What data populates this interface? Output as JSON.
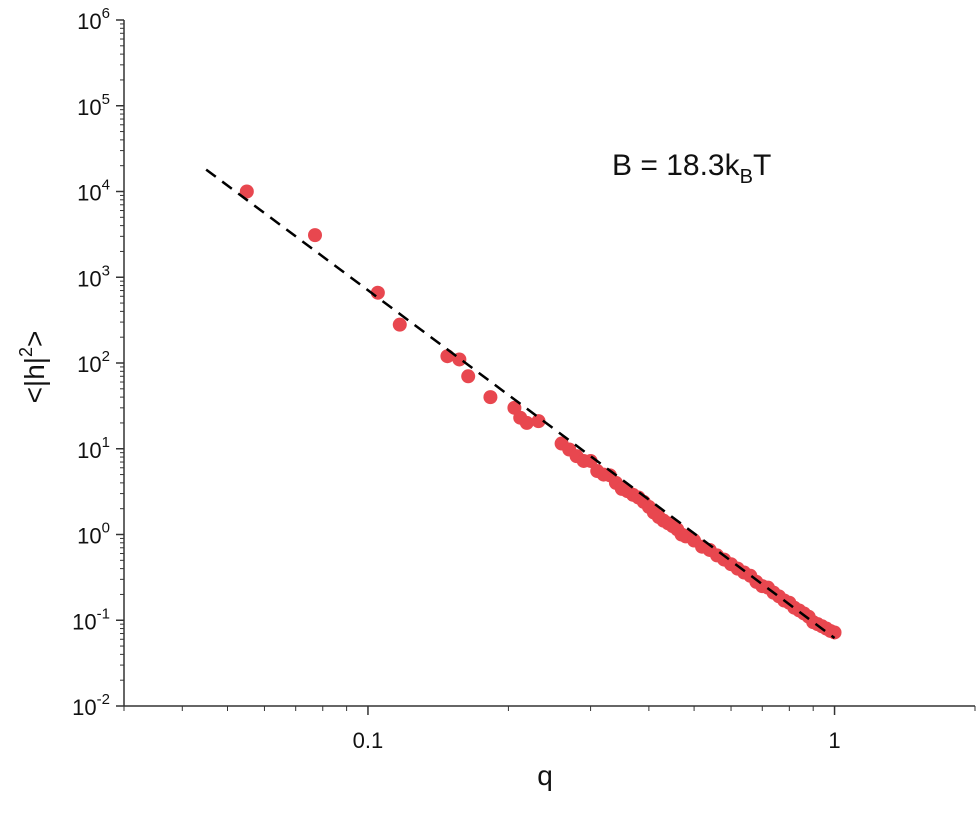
{
  "chart_data": {
    "type": "scatter",
    "xlabel": "q",
    "ylabel": "<|h|^2>",
    "xscale": "log",
    "yscale": "log",
    "xlim": [
      0.03,
      2.0
    ],
    "ylim": [
      0.01,
      1000000
    ],
    "grid": false,
    "x_ticks": [
      {
        "value": 0.1,
        "label": "0.1"
      },
      {
        "value": 1,
        "label": "1"
      }
    ],
    "y_ticks": [
      {
        "value": 0.01,
        "base": "10",
        "exp": "-2"
      },
      {
        "value": 0.1,
        "base": "10",
        "exp": "-1"
      },
      {
        "value": 1,
        "base": "10",
        "exp": "0"
      },
      {
        "value": 10,
        "base": "10",
        "exp": "1"
      },
      {
        "value": 100,
        "base": "10",
        "exp": "2"
      },
      {
        "value": 1000,
        "base": "10",
        "exp": "3"
      },
      {
        "value": 10000,
        "base": "10",
        "exp": "4"
      },
      {
        "value": 100000,
        "base": "10",
        "exp": "5"
      },
      {
        "value": 1000000,
        "base": "10",
        "exp": "6"
      }
    ],
    "annotation": {
      "prefix": "B = 18.3k",
      "sub": "B",
      "suffix": "T"
    },
    "series": [
      {
        "kind": "points",
        "color": "#e8474f",
        "x": [
          0.055,
          0.077,
          0.105,
          0.117,
          0.148,
          0.157,
          0.164,
          0.183,
          0.206,
          0.212,
          0.219,
          0.232,
          0.26,
          0.27,
          0.28,
          0.29,
          0.3,
          0.31,
          0.32,
          0.33,
          0.34,
          0.35,
          0.36,
          0.37,
          0.38,
          0.39,
          0.4,
          0.41,
          0.42,
          0.43,
          0.44,
          0.45,
          0.46,
          0.47,
          0.48,
          0.5,
          0.52,
          0.54,
          0.56,
          0.58,
          0.6,
          0.62,
          0.64,
          0.66,
          0.68,
          0.7,
          0.72,
          0.74,
          0.76,
          0.78,
          0.8,
          0.82,
          0.84,
          0.86,
          0.88,
          0.9,
          0.92,
          0.94,
          0.96,
          0.98,
          1.0
        ],
        "y": [
          10000,
          3100,
          660,
          280,
          120,
          110,
          70,
          40,
          30,
          23,
          20,
          21,
          11.5,
          9.8,
          8.2,
          7.2,
          7.2,
          5.5,
          5.0,
          4.9,
          4.0,
          3.4,
          3.2,
          2.9,
          2.7,
          2.4,
          2.1,
          1.8,
          1.6,
          1.45,
          1.35,
          1.25,
          1.15,
          1.0,
          0.95,
          0.85,
          0.72,
          0.66,
          0.57,
          0.51,
          0.45,
          0.4,
          0.36,
          0.33,
          0.28,
          0.25,
          0.24,
          0.21,
          0.19,
          0.17,
          0.16,
          0.14,
          0.13,
          0.12,
          0.11,
          0.095,
          0.09,
          0.085,
          0.08,
          0.075,
          0.072
        ]
      },
      {
        "kind": "fit-line",
        "color": "#000000",
        "dash": "dashed",
        "x": [
          0.045,
          1.0
        ],
        "y": [
          18000,
          0.062
        ]
      }
    ]
  }
}
